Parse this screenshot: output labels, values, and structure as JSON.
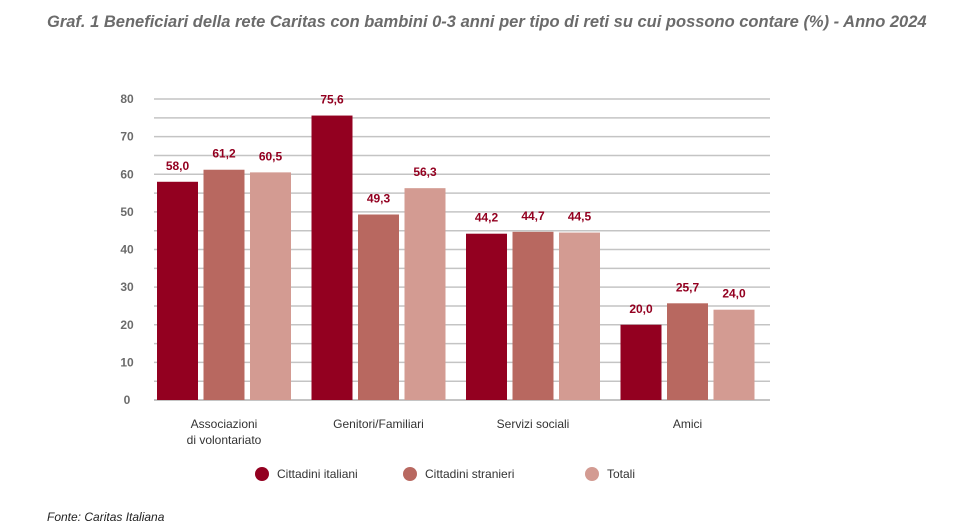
{
  "chart_data": {
    "type": "bar",
    "title": "Graf. 1  Beneficiari della rete Caritas con bambini 0-3 anni per tipo di reti su cui possono contare (%) - Anno 2024",
    "categories": [
      [
        "Associazioni",
        "di volontariato"
      ],
      [
        "Genitori/Familiari"
      ],
      [
        "Servizi sociali"
      ],
      [
        "Amici"
      ]
    ],
    "series": [
      {
        "name": "Cittadini italiani",
        "color": "#930020",
        "values": [
          58.0,
          75.6,
          44.2,
          20.0
        ],
        "labels": [
          "58,0",
          "75,6",
          "44,2",
          "20,0"
        ]
      },
      {
        "name": "Cittadini stranieri",
        "color": "#b86860",
        "values": [
          61.2,
          49.3,
          44.7,
          25.7
        ],
        "labels": [
          "61,2",
          "49,3",
          "44,7",
          "25,7"
        ]
      },
      {
        "name": "Totali",
        "color": "#d39b92",
        "values": [
          60.5,
          56.3,
          44.5,
          24.0
        ],
        "labels": [
          "60,5",
          "56,3",
          "44,5",
          "24,0"
        ]
      }
    ],
    "yticks": [
      "0",
      "10",
      "20",
      "30",
      "40",
      "50",
      "60",
      "70",
      "80"
    ],
    "ylim": [
      0,
      80
    ],
    "grid": true,
    "legend": "bottom"
  },
  "source": "Fonte: Caritas Italiana"
}
